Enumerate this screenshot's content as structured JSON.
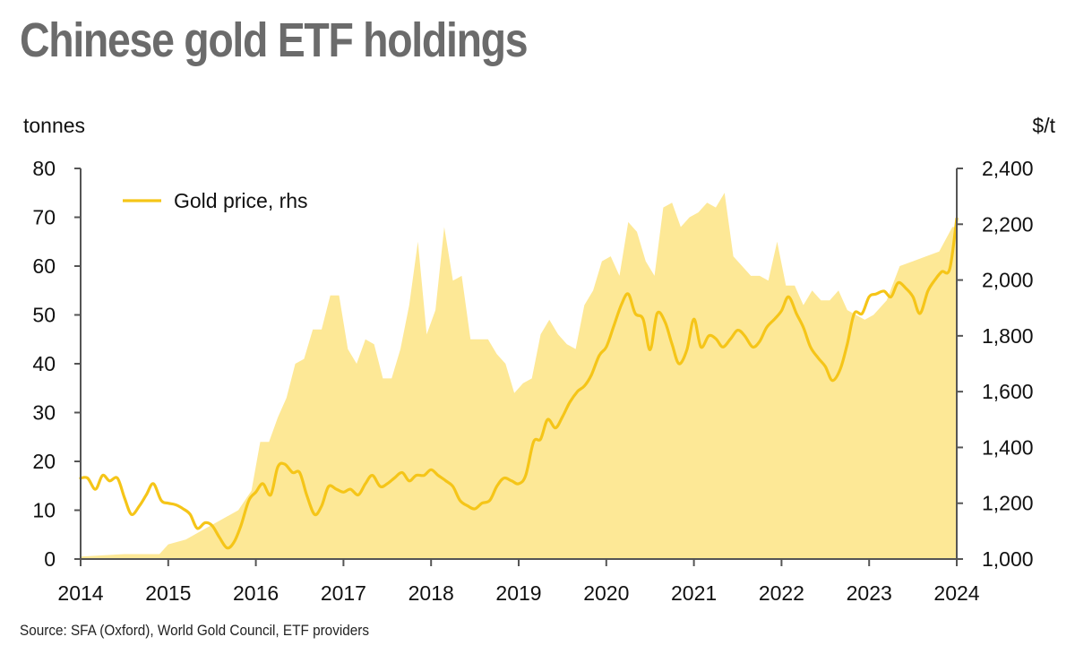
{
  "chart_data": {
    "type": "area",
    "title": "Chinese gold ETF holdings",
    "source": "Source: SFA (Oxford), World Gold Council, ETF providers",
    "y_left": {
      "unit": "tonnes",
      "range": [
        0,
        80
      ],
      "ticks": [
        "0",
        "10",
        "20",
        "30",
        "40",
        "50",
        "60",
        "70",
        "80"
      ]
    },
    "y_right": {
      "unit": "$/t",
      "range": [
        1000,
        2400
      ],
      "ticks": [
        "1,000",
        "1,200",
        "1,400",
        "1,600",
        "1,800",
        "2,000",
        "2,200",
        "2,400"
      ]
    },
    "x_ticks": [
      "2014",
      "2015",
      "2016",
      "2017",
      "2018",
      "2019",
      "2020",
      "2021",
      "2022",
      "2023",
      "2024"
    ],
    "x_range": [
      2014.0,
      2024.0
    ],
    "legend": {
      "position": "top-left",
      "entries": [
        "Gold price, rhs"
      ]
    },
    "colors": {
      "holdings_fill": "#fde896",
      "gold_line": "#f5c518",
      "axis": "#555555"
    },
    "series": [
      {
        "axis": "left",
        "style": "area",
        "x": [
          2014.0,
          2014.5,
          2014.9,
          2015.0,
          2015.2,
          2015.4,
          2015.6,
          2015.8,
          2015.95,
          2016.05,
          2016.15,
          2016.25,
          2016.35,
          2016.45,
          2016.55,
          2016.65,
          2016.75,
          2016.85,
          2016.95,
          2017.05,
          2017.15,
          2017.25,
          2017.35,
          2017.45,
          2017.55,
          2017.65,
          2017.75,
          2017.85,
          2017.95,
          2018.05,
          2018.15,
          2018.25,
          2018.35,
          2018.45,
          2018.55,
          2018.65,
          2018.75,
          2018.85,
          2018.95,
          2019.05,
          2019.15,
          2019.25,
          2019.35,
          2019.45,
          2019.55,
          2019.65,
          2019.75,
          2019.85,
          2019.95,
          2020.05,
          2020.15,
          2020.25,
          2020.35,
          2020.45,
          2020.55,
          2020.65,
          2020.75,
          2020.85,
          2020.95,
          2021.05,
          2021.15,
          2021.25,
          2021.35,
          2021.45,
          2021.55,
          2021.65,
          2021.75,
          2021.85,
          2021.95,
          2022.05,
          2022.15,
          2022.25,
          2022.35,
          2022.45,
          2022.55,
          2022.65,
          2022.75,
          2022.85,
          2022.95,
          2023.05,
          2023.2,
          2023.35,
          2023.5,
          2023.65,
          2023.8,
          2023.95,
          2024.0
        ],
        "values": [
          0.5,
          1,
          1,
          3,
          4,
          6,
          8,
          10,
          14,
          24,
          24,
          29,
          33,
          40,
          41,
          47,
          47,
          54,
          54,
          43,
          40,
          45,
          44,
          37,
          37,
          43,
          52,
          65,
          46,
          51,
          68,
          57,
          58,
          45,
          45,
          45,
          42,
          40,
          34,
          36,
          37,
          46,
          49,
          46,
          44,
          43,
          52,
          55,
          61,
          62,
          58,
          69,
          67,
          61,
          58,
          72,
          73,
          68,
          70,
          71,
          73,
          72,
          75,
          62,
          60,
          58,
          58,
          57,
          65,
          56,
          56,
          52,
          55,
          53,
          53,
          55,
          51,
          50,
          49,
          50,
          53,
          60,
          61,
          62,
          63,
          68,
          68
        ]
      },
      {
        "name": "Gold price, rhs",
        "axis": "right",
        "style": "line",
        "x": [
          2014.0,
          2014.08,
          2014.17,
          2014.25,
          2014.33,
          2014.42,
          2014.5,
          2014.58,
          2014.67,
          2014.75,
          2014.83,
          2014.92,
          2015.0,
          2015.08,
          2015.17,
          2015.25,
          2015.33,
          2015.42,
          2015.5,
          2015.58,
          2015.67,
          2015.75,
          2015.83,
          2015.92,
          2016.0,
          2016.08,
          2016.17,
          2016.25,
          2016.33,
          2016.42,
          2016.5,
          2016.58,
          2016.67,
          2016.75,
          2016.83,
          2016.92,
          2017.0,
          2017.08,
          2017.17,
          2017.25,
          2017.33,
          2017.42,
          2017.5,
          2017.58,
          2017.67,
          2017.75,
          2017.83,
          2017.92,
          2018.0,
          2018.08,
          2018.17,
          2018.25,
          2018.33,
          2018.42,
          2018.5,
          2018.58,
          2018.67,
          2018.75,
          2018.83,
          2018.92,
          2019.0,
          2019.08,
          2019.17,
          2019.25,
          2019.33,
          2019.42,
          2019.5,
          2019.58,
          2019.67,
          2019.75,
          2019.83,
          2019.92,
          2020.0,
          2020.08,
          2020.17,
          2020.25,
          2020.33,
          2020.42,
          2020.5,
          2020.58,
          2020.67,
          2020.75,
          2020.83,
          2020.92,
          2021.0,
          2021.08,
          2021.17,
          2021.25,
          2021.33,
          2021.42,
          2021.5,
          2021.58,
          2021.67,
          2021.75,
          2021.83,
          2021.92,
          2022.0,
          2022.08,
          2022.17,
          2022.25,
          2022.33,
          2022.42,
          2022.5,
          2022.58,
          2022.67,
          2022.75,
          2022.83,
          2022.92,
          2023.0,
          2023.08,
          2023.17,
          2023.25,
          2023.33,
          2023.42,
          2023.5,
          2023.58,
          2023.67,
          2023.75,
          2023.83,
          2023.92,
          2024.0
        ],
        "values": [
          1290,
          1290,
          1250,
          1300,
          1280,
          1290,
          1220,
          1160,
          1190,
          1230,
          1270,
          1210,
          1200,
          1195,
          1180,
          1160,
          1110,
          1130,
          1120,
          1080,
          1040,
          1060,
          1120,
          1210,
          1240,
          1270,
          1230,
          1330,
          1340,
          1310,
          1310,
          1230,
          1160,
          1190,
          1260,
          1250,
          1240,
          1250,
          1230,
          1270,
          1300,
          1260,
          1270,
          1290,
          1310,
          1280,
          1300,
          1300,
          1320,
          1300,
          1280,
          1260,
          1210,
          1190,
          1180,
          1200,
          1210,
          1260,
          1290,
          1280,
          1270,
          1300,
          1420,
          1430,
          1500,
          1470,
          1510,
          1560,
          1600,
          1620,
          1660,
          1730,
          1760,
          1830,
          1910,
          1950,
          1880,
          1860,
          1750,
          1880,
          1850,
          1770,
          1700,
          1750,
          1860,
          1760,
          1800,
          1790,
          1760,
          1790,
          1820,
          1800,
          1760,
          1780,
          1830,
          1860,
          1890,
          1940,
          1880,
          1830,
          1760,
          1720,
          1690,
          1640,
          1680,
          1770,
          1880,
          1880,
          1940,
          1950,
          1960,
          1940,
          1990,
          1970,
          1940,
          1880,
          1960,
          2000,
          2030,
          2040,
          2220
        ]
      }
    ]
  }
}
